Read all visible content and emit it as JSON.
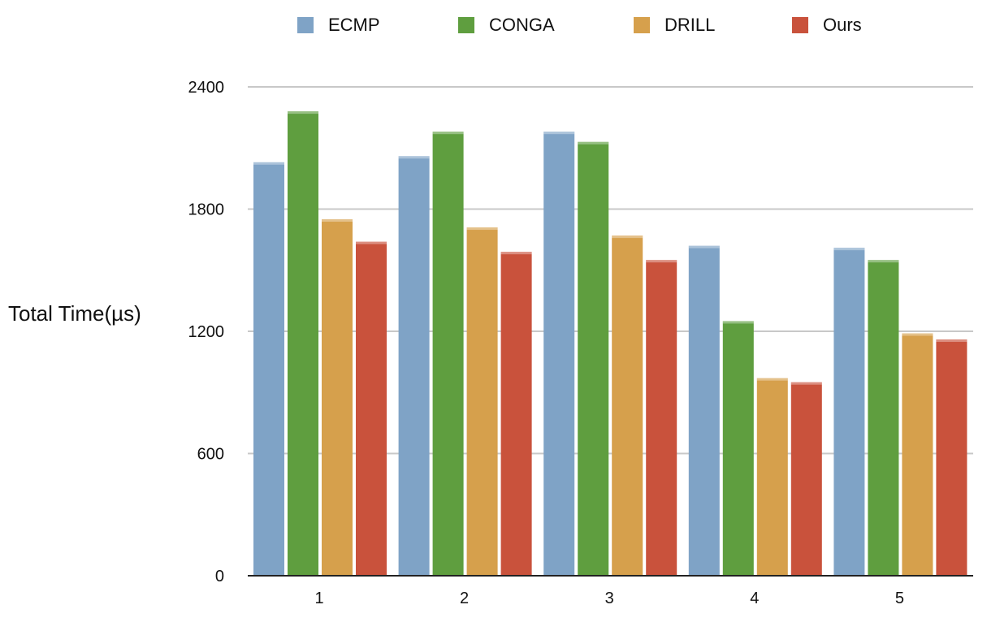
{
  "chart_data": {
    "type": "bar",
    "title": "",
    "xlabel": "",
    "ylabel": "Total Time(µs)",
    "categories": [
      "1",
      "2",
      "3",
      "4",
      "5"
    ],
    "ylim": [
      0,
      2400
    ],
    "yticks": [
      "0",
      "600",
      "1200",
      "1800",
      "2400"
    ],
    "grid": true,
    "legend_position": "top",
    "series": [
      {
        "name": "ECMP",
        "color": "#7fa3c6",
        "values": [
          2030,
          2060,
          2180,
          1620,
          1610
        ]
      },
      {
        "name": "CONGA",
        "color": "#5f9e3f",
        "values": [
          2280,
          2180,
          2130,
          1250,
          1550
        ]
      },
      {
        "name": "DRILL",
        "color": "#d6a04c",
        "values": [
          1750,
          1710,
          1670,
          970,
          1190
        ]
      },
      {
        "name": "Ours",
        "color": "#c9523c",
        "values": [
          1640,
          1590,
          1550,
          950,
          1160
        ]
      }
    ]
  }
}
